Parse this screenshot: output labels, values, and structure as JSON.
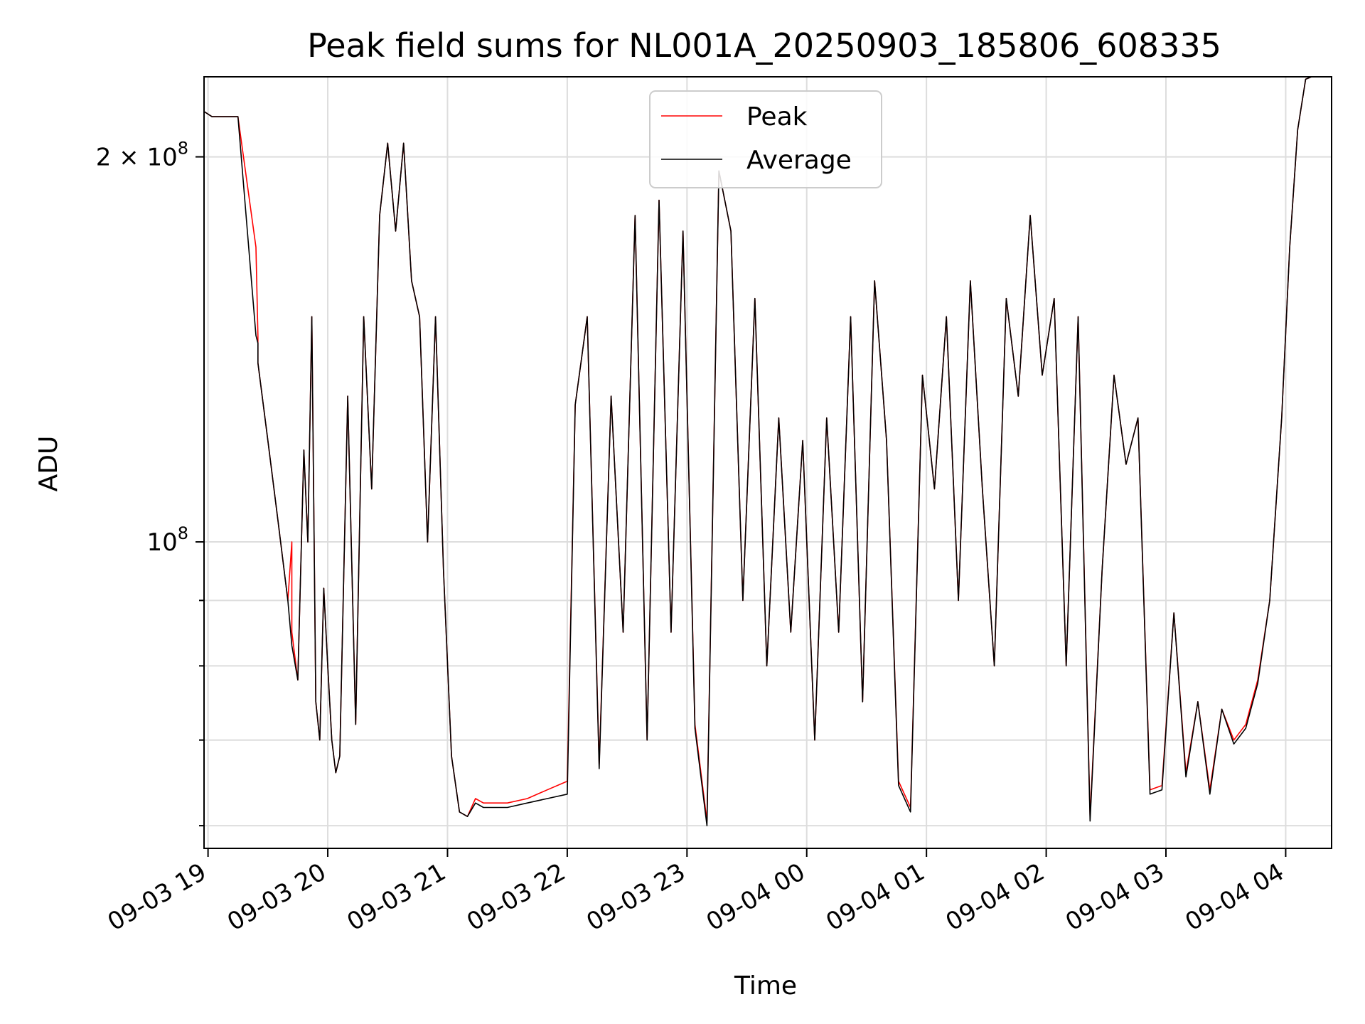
{
  "chart_data": {
    "type": "line",
    "title": "Peak field sums for NL001A_20250903_185806_608335",
    "xlabel": "Time",
    "ylabel": "ADU",
    "y_scale": "log",
    "ylim": [
      57600000,
      231000000
    ],
    "xlim": [
      "2025-09-03 18:58",
      "2025-09-04 04:23"
    ],
    "grid": true,
    "legend_position": "top-center",
    "x_ticks": [
      {
        "t": "2025-09-03 19:00",
        "label": "09-03 19"
      },
      {
        "t": "2025-09-03 20:00",
        "label": "09-03 20"
      },
      {
        "t": "2025-09-03 21:00",
        "label": "09-03 21"
      },
      {
        "t": "2025-09-03 22:00",
        "label": "09-03 22"
      },
      {
        "t": "2025-09-03 23:00",
        "label": "09-03 23"
      },
      {
        "t": "2025-09-04 00:00",
        "label": "09-04 00"
      },
      {
        "t": "2025-09-04 01:00",
        "label": "09-04 01"
      },
      {
        "t": "2025-09-04 02:00",
        "label": "09-04 02"
      },
      {
        "t": "2025-09-04 03:00",
        "label": "09-04 03"
      },
      {
        "t": "2025-09-04 04:00",
        "label": "09-04 04"
      }
    ],
    "y_ticks": [
      {
        "value": 100000000,
        "base": "10",
        "exp": "8",
        "coef": ""
      },
      {
        "value": 200000000,
        "base": "10",
        "exp": "8",
        "coef": "2"
      }
    ],
    "y_minor_ticks": [
      60000000,
      70000000,
      80000000,
      90000000
    ],
    "series": [
      {
        "name": "Peak",
        "color": "#ff0000",
        "x": [
          "2025-09-03 18:58",
          "2025-09-03 19:00",
          "2025-09-03 19:02",
          "2025-09-03 19:15",
          "2025-09-03 19:24",
          "2025-09-03 19:25",
          "2025-09-03 19:25",
          "2025-09-03 19:30",
          "2025-09-03 19:35",
          "2025-09-03 19:40",
          "2025-09-03 19:42",
          "2025-09-03 19:42",
          "2025-09-03 19:45",
          "2025-09-03 19:48",
          "2025-09-03 19:50",
          "2025-09-03 19:52",
          "2025-09-03 19:54",
          "2025-09-03 19:56",
          "2025-09-03 19:58",
          "2025-09-03 20:00",
          "2025-09-03 20:02",
          "2025-09-03 20:04",
          "2025-09-03 20:06",
          "2025-09-03 20:10",
          "2025-09-03 20:14",
          "2025-09-03 20:18",
          "2025-09-03 20:22",
          "2025-09-03 20:26",
          "2025-09-03 20:30",
          "2025-09-03 20:34",
          "2025-09-03 20:38",
          "2025-09-03 20:42",
          "2025-09-03 20:46",
          "2025-09-03 20:50",
          "2025-09-03 20:54",
          "2025-09-03 20:58",
          "2025-09-03 21:02",
          "2025-09-03 21:06",
          "2025-09-03 21:10",
          "2025-09-03 21:14",
          "2025-09-03 21:18",
          "2025-09-03 21:22",
          "2025-09-03 21:30",
          "2025-09-03 21:40",
          "2025-09-03 21:50",
          "2025-09-03 22:00",
          "2025-09-03 22:04",
          "2025-09-03 22:10",
          "2025-09-03 22:16",
          "2025-09-03 22:22",
          "2025-09-03 22:28",
          "2025-09-03 22:34",
          "2025-09-03 22:40",
          "2025-09-03 22:46",
          "2025-09-03 22:52",
          "2025-09-03 22:58",
          "2025-09-03 23:04",
          "2025-09-03 23:10",
          "2025-09-03 23:16",
          "2025-09-03 23:22",
          "2025-09-03 23:28",
          "2025-09-03 23:34",
          "2025-09-03 23:40",
          "2025-09-03 23:46",
          "2025-09-03 23:52",
          "2025-09-03 23:58",
          "2025-09-04 00:04",
          "2025-09-04 00:10",
          "2025-09-04 00:16",
          "2025-09-04 00:22",
          "2025-09-04 00:28",
          "2025-09-04 00:34",
          "2025-09-04 00:40",
          "2025-09-04 00:46",
          "2025-09-04 00:52",
          "2025-09-04 00:58",
          "2025-09-04 01:04",
          "2025-09-04 01:10",
          "2025-09-04 01:16",
          "2025-09-04 01:22",
          "2025-09-04 01:28",
          "2025-09-04 01:34",
          "2025-09-04 01:40",
          "2025-09-04 01:46",
          "2025-09-04 01:52",
          "2025-09-04 01:58",
          "2025-09-04 02:04",
          "2025-09-04 02:10",
          "2025-09-04 02:16",
          "2025-09-04 02:22",
          "2025-09-04 02:28",
          "2025-09-04 02:34",
          "2025-09-04 02:40",
          "2025-09-04 02:46",
          "2025-09-04 02:52",
          "2025-09-04 02:58",
          "2025-09-04 03:04",
          "2025-09-04 03:10",
          "2025-09-04 03:16",
          "2025-09-04 03:22",
          "2025-09-04 03:28",
          "2025-09-04 03:34",
          "2025-09-04 03:40",
          "2025-09-04 03:46",
          "2025-09-04 03:52",
          "2025-09-04 03:58",
          "2025-09-04 04:02",
          "2025-09-04 04:06",
          "2025-09-04 04:10",
          "2025-09-04 04:13"
        ],
        "values": [
          217000000,
          216000000,
          215000000,
          215000000,
          170000000,
          145000000,
          138000000,
          120000000,
          104000000,
          90000000,
          100000000,
          85000000,
          78000000,
          118000000,
          100000000,
          150000000,
          75000000,
          70000000,
          92000000,
          80000000,
          70000000,
          66000000,
          68000000,
          130000000,
          72000000,
          150000000,
          110000000,
          180000000,
          205000000,
          175000000,
          205000000,
          160000000,
          150000000,
          100000000,
          150000000,
          95000000,
          68000000,
          61500000,
          61000000,
          63000000,
          62500000,
          62500000,
          62500000,
          63000000,
          64000000,
          65000000,
          128000000,
          150000000,
          67000000,
          130000000,
          85000000,
          180000000,
          70000000,
          185000000,
          85000000,
          175000000,
          72000000,
          60500000,
          195000000,
          175000000,
          90000000,
          155000000,
          80000000,
          125000000,
          85000000,
          120000000,
          70000000,
          125000000,
          85000000,
          150000000,
          75000000,
          160000000,
          120000000,
          65000000,
          62000000,
          135000000,
          110000000,
          150000000,
          90000000,
          160000000,
          110000000,
          80000000,
          155000000,
          130000000,
          180000000,
          135000000,
          155000000,
          80000000,
          150000000,
          61000000,
          95000000,
          135000000,
          115000000,
          125000000,
          64000000,
          64500000,
          88000000,
          66000000,
          75000000,
          64000000,
          74000000,
          70000000,
          72000000,
          78000000,
          90000000,
          125000000,
          170000000,
          210000000,
          230000000,
          231000000
        ]
      },
      {
        "name": "Average",
        "color": "#000000",
        "x": [
          "2025-09-03 18:58",
          "2025-09-03 19:00",
          "2025-09-03 19:02",
          "2025-09-03 19:15",
          "2025-09-03 19:24",
          "2025-09-03 19:25",
          "2025-09-03 19:25",
          "2025-09-03 19:30",
          "2025-09-03 19:35",
          "2025-09-03 19:40",
          "2025-09-03 19:42",
          "2025-09-03 19:42",
          "2025-09-03 19:45",
          "2025-09-03 19:48",
          "2025-09-03 19:50",
          "2025-09-03 19:52",
          "2025-09-03 19:54",
          "2025-09-03 19:56",
          "2025-09-03 19:58",
          "2025-09-03 20:00",
          "2025-09-03 20:02",
          "2025-09-03 20:04",
          "2025-09-03 20:06",
          "2025-09-03 20:10",
          "2025-09-03 20:14",
          "2025-09-03 20:18",
          "2025-09-03 20:22",
          "2025-09-03 20:26",
          "2025-09-03 20:30",
          "2025-09-03 20:34",
          "2025-09-03 20:38",
          "2025-09-03 20:42",
          "2025-09-03 20:46",
          "2025-09-03 20:50",
          "2025-09-03 20:54",
          "2025-09-03 20:58",
          "2025-09-03 21:02",
          "2025-09-03 21:06",
          "2025-09-03 21:10",
          "2025-09-03 21:14",
          "2025-09-03 21:18",
          "2025-09-03 21:22",
          "2025-09-03 21:30",
          "2025-09-03 21:40",
          "2025-09-03 21:50",
          "2025-09-03 22:00",
          "2025-09-03 22:04",
          "2025-09-03 22:10",
          "2025-09-03 22:16",
          "2025-09-03 22:22",
          "2025-09-03 22:28",
          "2025-09-03 22:34",
          "2025-09-03 22:40",
          "2025-09-03 22:46",
          "2025-09-03 22:52",
          "2025-09-03 22:58",
          "2025-09-03 23:04",
          "2025-09-03 23:10",
          "2025-09-03 23:16",
          "2025-09-03 23:22",
          "2025-09-03 23:28",
          "2025-09-03 23:34",
          "2025-09-03 23:40",
          "2025-09-03 23:46",
          "2025-09-03 23:52",
          "2025-09-03 23:58",
          "2025-09-04 00:04",
          "2025-09-04 00:10",
          "2025-09-04 00:16",
          "2025-09-04 00:22",
          "2025-09-04 00:28",
          "2025-09-04 00:34",
          "2025-09-04 00:40",
          "2025-09-04 00:46",
          "2025-09-04 00:52",
          "2025-09-04 00:58",
          "2025-09-04 01:04",
          "2025-09-04 01:10",
          "2025-09-04 01:16",
          "2025-09-04 01:22",
          "2025-09-04 01:28",
          "2025-09-04 01:34",
          "2025-09-04 01:40",
          "2025-09-04 01:46",
          "2025-09-04 01:52",
          "2025-09-04 01:58",
          "2025-09-04 02:04",
          "2025-09-04 02:10",
          "2025-09-04 02:16",
          "2025-09-04 02:22",
          "2025-09-04 02:28",
          "2025-09-04 02:34",
          "2025-09-04 02:40",
          "2025-09-04 02:46",
          "2025-09-04 02:52",
          "2025-09-04 02:58",
          "2025-09-04 03:04",
          "2025-09-04 03:10",
          "2025-09-04 03:16",
          "2025-09-04 03:22",
          "2025-09-04 03:28",
          "2025-09-04 03:34",
          "2025-09-04 03:40",
          "2025-09-04 03:46",
          "2025-09-04 03:52",
          "2025-09-04 03:58",
          "2025-09-04 04:02",
          "2025-09-04 04:06",
          "2025-09-04 04:10",
          "2025-09-04 04:13"
        ],
        "values": [
          217000000,
          216000000,
          215000000,
          215000000,
          145000000,
          143000000,
          138000000,
          120000000,
          104000000,
          90000000,
          83000000,
          83000000,
          78000000,
          118000000,
          100000000,
          150000000,
          75000000,
          70000000,
          92000000,
          80000000,
          70000000,
          66000000,
          68000000,
          130000000,
          72000000,
          150000000,
          110000000,
          180000000,
          205000000,
          175000000,
          205000000,
          160000000,
          150000000,
          100000000,
          150000000,
          95000000,
          68000000,
          61500000,
          61000000,
          62500000,
          62000000,
          62000000,
          62000000,
          62500000,
          63000000,
          63500000,
          128000000,
          150000000,
          66500000,
          130000000,
          85000000,
          180000000,
          70000000,
          185000000,
          85000000,
          175000000,
          71500000,
          60000000,
          195000000,
          175000000,
          90000000,
          155000000,
          80000000,
          125000000,
          85000000,
          120000000,
          70000000,
          125000000,
          85000000,
          150000000,
          75000000,
          160000000,
          120000000,
          64500000,
          61500000,
          135000000,
          110000000,
          150000000,
          90000000,
          160000000,
          110000000,
          80000000,
          155000000,
          130000000,
          180000000,
          135000000,
          155000000,
          80000000,
          150000000,
          60500000,
          95000000,
          135000000,
          115000000,
          125000000,
          63500000,
          64000000,
          88000000,
          65500000,
          75000000,
          63500000,
          74000000,
          69500000,
          71500000,
          77500000,
          90000000,
          125000000,
          170000000,
          210000000,
          230000000,
          231000000
        ]
      }
    ]
  }
}
